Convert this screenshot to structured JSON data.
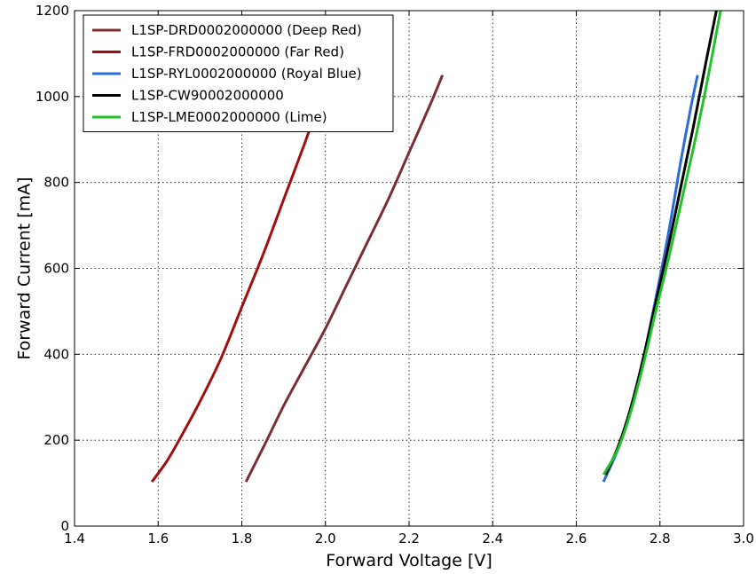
{
  "chart_data": {
    "type": "line",
    "title": "",
    "xlabel": "Forward Voltage [V]",
    "ylabel": "Forward Current [mA]",
    "xlim": [
      1.4,
      3.0
    ],
    "ylim": [
      0,
      1200
    ],
    "xticks": [
      "1.4",
      "1.6",
      "1.8",
      "2.0",
      "2.2",
      "2.4",
      "2.6",
      "2.8",
      "3.0"
    ],
    "yticks": [
      "0",
      "200",
      "400",
      "600",
      "800",
      "1000",
      "1200"
    ],
    "grid": true,
    "legend_position": "top-left",
    "series": [
      {
        "name": "L1SP-DRD0002000000 (Deep Red)",
        "color": "#7b2d33",
        "x": [
          1.81,
          1.86,
          1.9,
          1.95,
          2.0,
          2.05,
          2.1,
          2.15,
          2.2,
          2.25,
          2.28
        ],
        "y": [
          103,
          200,
          280,
          370,
          460,
          560,
          660,
          760,
          870,
          980,
          1050
        ]
      },
      {
        "name": "L1SP-FRD0002000000 (Far Red)",
        "color": "#a00e10",
        "x": [
          1.585,
          1.62,
          1.65,
          1.7,
          1.75,
          1.8,
          1.85,
          1.9,
          1.95,
          1.99
        ],
        "y": [
          103,
          150,
          200,
          290,
          390,
          510,
          630,
          760,
          890,
          1000
        ]
      },
      {
        "name": "L1SP-RYL0002000000 (Royal Blue)",
        "color": "#2a6bd8",
        "x": [
          2.665,
          2.7,
          2.73,
          2.76,
          2.79,
          2.82,
          2.85,
          2.875,
          2.89
        ],
        "y": [
          103,
          180,
          270,
          390,
          530,
          680,
          850,
          980,
          1050
        ]
      },
      {
        "name": "L1SP-CW90002000000",
        "color": "#000000",
        "x": [
          2.67,
          2.7,
          2.73,
          2.76,
          2.79,
          2.82,
          2.85,
          2.88,
          2.91,
          2.935
        ],
        "y": [
          120,
          185,
          275,
          390,
          520,
          650,
          790,
          930,
          1080,
          1200
        ]
      },
      {
        "name": "L1SP-LME0002000000 (Lime)",
        "color": "#22c22a",
        "x": [
          2.665,
          2.7,
          2.73,
          2.76,
          2.79,
          2.82,
          2.85,
          2.88,
          2.91,
          2.945
        ],
        "y": [
          120,
          180,
          265,
          375,
          500,
          620,
          750,
          880,
          1020,
          1200
        ]
      }
    ]
  }
}
